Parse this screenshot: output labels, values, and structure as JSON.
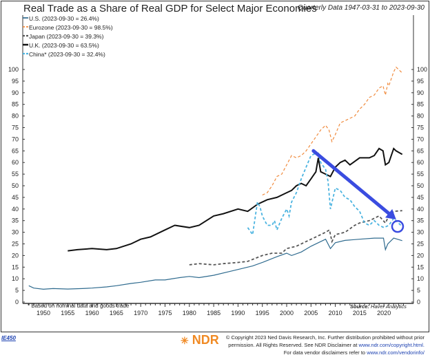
{
  "chart_data": {
    "type": "line",
    "title": "Real Trade as a Share of Real GDP for Select Major Economies",
    "subtitle": "Quarterly Data 1947-03-31 to 2023-09-30",
    "xlim": [
      1946.5,
      2024.5
    ],
    "ylim": [
      0,
      103
    ],
    "x_ticks": [
      1950,
      1955,
      1960,
      1965,
      1970,
      1975,
      1980,
      1985,
      1990,
      1995,
      2000,
      2005,
      2010,
      2015,
      2020
    ],
    "y_ticks": [
      0,
      5,
      10,
      15,
      20,
      25,
      30,
      35,
      40,
      45,
      50,
      55,
      60,
      65,
      70,
      75,
      80,
      85,
      90,
      95,
      100
    ],
    "legend_position": "top-left",
    "grid": false,
    "series": [
      {
        "name": "U.S. (2023-09-30 = 26.4%)",
        "color": "#2e6a8e",
        "style": "solid",
        "width": 1.2,
        "x": [
          1947,
          1948,
          1950,
          1952,
          1955,
          1958,
          1960,
          1963,
          1965,
          1968,
          1970,
          1973,
          1975,
          1978,
          1980,
          1982,
          1985,
          1988,
          1990,
          1993,
          1995,
          1998,
          2000,
          2001,
          2003,
          2005,
          2008,
          2009,
          2010,
          2012,
          2015,
          2018,
          2019.9,
          2020.3,
          2020.8,
          2022,
          2023.75
        ],
        "y": [
          7,
          6,
          5.5,
          5.8,
          5.6,
          5.8,
          6,
          6.5,
          7,
          8,
          8.5,
          9.5,
          9.5,
          10.5,
          11,
          10.5,
          11.5,
          13,
          14,
          15.5,
          17,
          19.5,
          21,
          20,
          21.5,
          24,
          27,
          23,
          25.5,
          26.5,
          27,
          27.5,
          27.5,
          22.5,
          25,
          27.5,
          26.4
        ]
      },
      {
        "name": "Eurozone (2023-09-30 = 98.5%)",
        "color": "#f08a3c",
        "style": "dash",
        "width": 1.2,
        "x": [
          1995,
          1996,
          1997,
          1998,
          1999,
          2000,
          2001,
          2002,
          2003,
          2004,
          2005,
          2006,
          2007,
          2008,
          2008.7,
          2009.3,
          2010,
          2011,
          2012,
          2013,
          2014,
          2015,
          2016,
          2017,
          2018,
          2019,
          2019.8,
          2020.3,
          2020.8,
          2021,
          2022,
          2022.5,
          2023.75
        ],
        "y": [
          46,
          47,
          50,
          54,
          55,
          59,
          63,
          62,
          63,
          65,
          68,
          71,
          74,
          76,
          74,
          69,
          72,
          77,
          78,
          79,
          80,
          83,
          85,
          88,
          89,
          92,
          93,
          89,
          94,
          93,
          99,
          101,
          98.5
        ]
      },
      {
        "name": "Japan (2023-09-30 = 39.3%)",
        "color": "#555555",
        "style": "dash",
        "width": 1.8,
        "x": [
          1980,
          1982,
          1985,
          1987,
          1990,
          1992,
          1995,
          1997,
          1999,
          2000,
          2002,
          2004,
          2006,
          2008,
          2008.8,
          2009.3,
          2010,
          2012,
          2014,
          2015,
          2017,
          2019,
          2020.3,
          2021,
          2022,
          2023.75
        ],
        "y": [
          16,
          16.5,
          16,
          16.5,
          17,
          17.5,
          20,
          21,
          21,
          23,
          24,
          26,
          28,
          30,
          31,
          26,
          29,
          30,
          33,
          34,
          35,
          37,
          34,
          37,
          39,
          39.3
        ]
      },
      {
        "name": "U.K. (2023-09-30 = 63.5%)",
        "color": "#111111",
        "style": "solid",
        "width": 2,
        "x": [
          1955,
          1957,
          1960,
          1963,
          1965,
          1968,
          1970,
          1972,
          1975,
          1977,
          1980,
          1982,
          1985,
          1987,
          1990,
          1992,
          1994,
          1996,
          1998,
          2000,
          2001,
          2002,
          2003,
          2004,
          2005,
          2006,
          2006.5,
          2007,
          2008,
          2009,
          2010,
          2011,
          2012,
          2013,
          2015,
          2017,
          2018,
          2019,
          2019.8,
          2020.3,
          2021,
          2022,
          2022.5,
          2023.75
        ],
        "y": [
          22,
          22.5,
          23,
          22.5,
          23,
          25,
          27,
          28,
          31,
          33,
          32,
          33,
          37,
          38,
          40,
          39,
          42,
          44,
          45,
          47,
          48,
          50,
          51,
          50,
          53,
          56,
          62,
          56,
          55,
          54,
          58,
          60,
          61,
          59,
          62,
          62,
          63,
          66,
          65,
          59,
          60,
          66,
          65,
          63.5
        ]
      },
      {
        "name": "China* (2023-09-30 = 32.4%)",
        "color": "#4ab3e0",
        "style": "dash",
        "width": 1.8,
        "x": [
          1992,
          1993,
          1993.5,
          1994,
          1994.5,
          1995,
          1996,
          1997,
          1997.5,
          1998,
          1999,
          2000,
          2000.5,
          2001,
          2002,
          2003,
          2004,
          2005,
          2006,
          2006.5,
          2007,
          2008,
          2008.5,
          2009,
          2010,
          2011,
          2012,
          2013,
          2014,
          2015,
          2016,
          2017,
          2018,
          2019,
          2020,
          2021,
          2022,
          2023.75
        ],
        "y": [
          32,
          29,
          36,
          43,
          41,
          37,
          33,
          33,
          35,
          31,
          36,
          40,
          37,
          43,
          47,
          53,
          58,
          63,
          64,
          64,
          60,
          57,
          52,
          40,
          49,
          48,
          45,
          44,
          41,
          39,
          34,
          33,
          35,
          33,
          32,
          33,
          36,
          32.4
        ]
      }
    ],
    "annotation_arrow": {
      "from": [
        2005.5,
        65
      ],
      "to": [
        2022.5,
        35.5
      ],
      "color": "#3a4ce0"
    },
    "annotation_circle": {
      "center": [
        2022.8,
        32.5
      ],
      "color": "#3a4ce0"
    },
    "footnote": "* Based on nominal data and goods trade",
    "source_label": "Source:",
    "source": "Haver Analytics"
  },
  "footer": {
    "chart_code": "IE450",
    "logo_text": "NDR",
    "copyright_1": "© Copyright 2023 Ned Davis Research, Inc. Further distribution prohibited without prior",
    "copyright_2": "permission. All Rights Reserved. See NDR Disclaimer at",
    "copyright_link": "www.ndr.com/copyright.html.",
    "vendor_text": "For data vendor disclaimers refer to",
    "vendor_link": "www.ndr.com/vendorinfo/"
  }
}
